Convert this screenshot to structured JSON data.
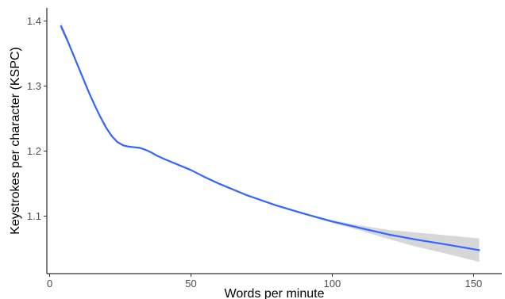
{
  "chart_data": {
    "type": "line",
    "title": "",
    "xlabel": "Words per minute",
    "ylabel": "Keystrokes per character (KSPC)",
    "xlim": [
      -1,
      160
    ],
    "ylim": [
      1.012,
      1.42
    ],
    "x_ticks": [
      0,
      50,
      100,
      150
    ],
    "y_ticks": [
      1.1,
      1.2,
      1.3,
      1.4
    ],
    "grid": false,
    "legend": "none",
    "series": [
      {
        "line_color": "#3366ff",
        "band_color": "#bdbdbd",
        "x": [
          4,
          6,
          8,
          10,
          12,
          14,
          16,
          18,
          20,
          22,
          24,
          26,
          28,
          30,
          32,
          34,
          36,
          38,
          40,
          45,
          50,
          55,
          60,
          70,
          80,
          90,
          100,
          110,
          120,
          130,
          140,
          152
        ],
        "y": [
          1.392,
          1.373,
          1.352,
          1.331,
          1.31,
          1.289,
          1.27,
          1.252,
          1.236,
          1.223,
          1.214,
          1.209,
          1.207,
          1.206,
          1.205,
          1.202,
          1.198,
          1.193,
          1.189,
          1.18,
          1.171,
          1.16,
          1.15,
          1.132,
          1.117,
          1.104,
          1.092,
          1.082,
          1.072,
          1.064,
          1.057,
          1.048
        ],
        "ci_lower": [
          1.386,
          1.369,
          1.349,
          1.329,
          1.308,
          1.288,
          1.269,
          1.251,
          1.235,
          1.222,
          1.213,
          1.208,
          1.206,
          1.205,
          1.204,
          1.201,
          1.197,
          1.192,
          1.188,
          1.179,
          1.17,
          1.159,
          1.149,
          1.131,
          1.116,
          1.103,
          1.09,
          1.078,
          1.065,
          1.053,
          1.043,
          1.03
        ],
        "ci_upper": [
          1.398,
          1.377,
          1.355,
          1.333,
          1.312,
          1.29,
          1.271,
          1.253,
          1.237,
          1.224,
          1.215,
          1.21,
          1.208,
          1.207,
          1.206,
          1.203,
          1.199,
          1.194,
          1.19,
          1.181,
          1.172,
          1.161,
          1.151,
          1.133,
          1.118,
          1.105,
          1.094,
          1.086,
          1.079,
          1.075,
          1.071,
          1.066
        ]
      }
    ]
  }
}
